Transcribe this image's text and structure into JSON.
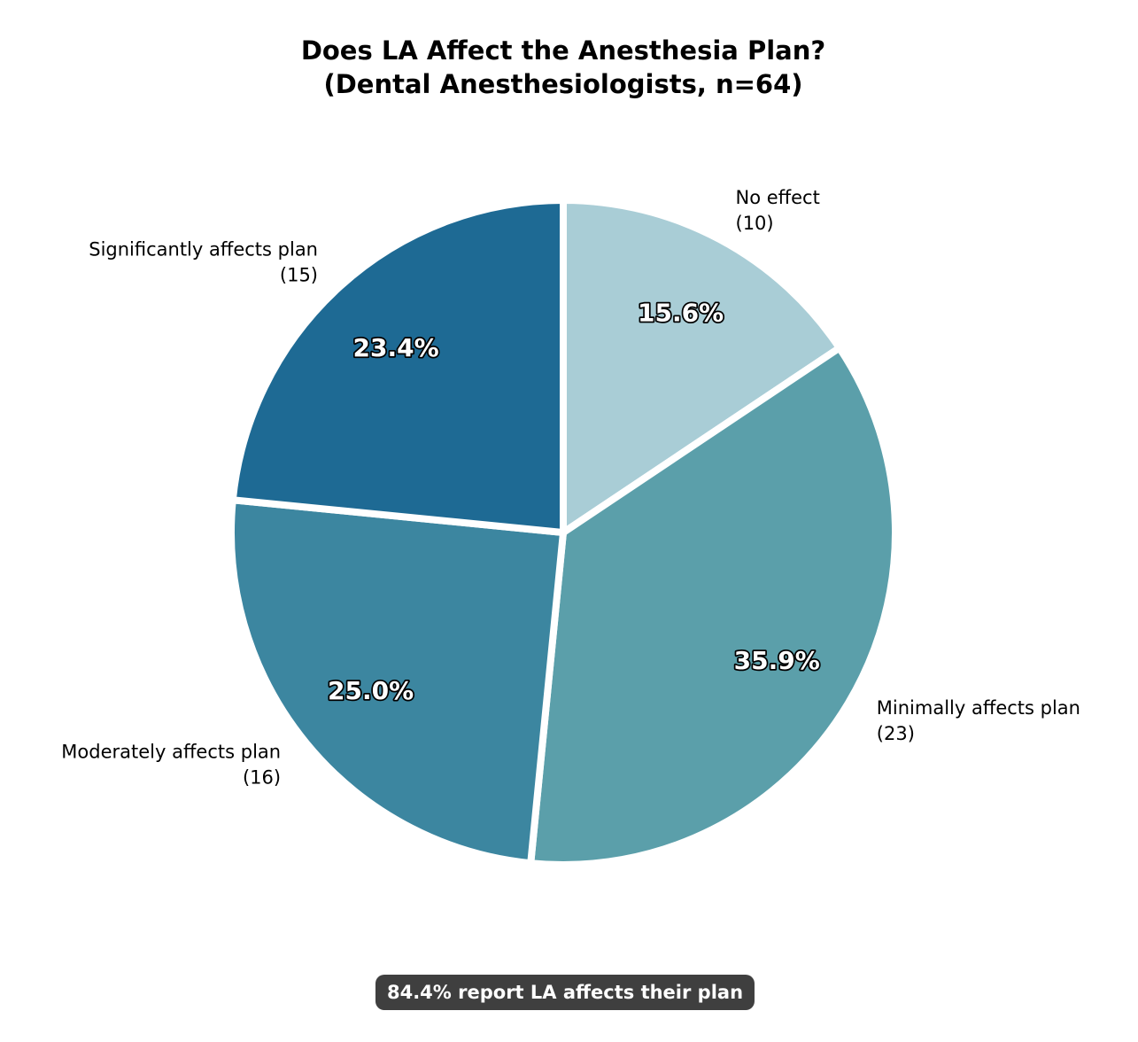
{
  "title": {
    "line1": "Does LA Affect the Anesthesia Plan?",
    "line2": "(Dental Anesthesiologists, n=64)"
  },
  "caption": {
    "text": "84.4% report LA affects their plan",
    "bg_color": "#3f3f3f",
    "text_color": "#ffffff"
  },
  "chart_data": {
    "type": "pie",
    "title": "Does LA Affect the Anesthesia Plan? (Dental Anesthesiologists, n=64)",
    "n_total": 64,
    "start_angle_deg": 90,
    "direction": "clockwise",
    "edge_color": "#ffffff",
    "slices": [
      {
        "id": "no-effect",
        "label": "No effect",
        "count_label": "(10)",
        "value": 10,
        "pct": 15.6,
        "pct_label": "15.6%",
        "color": "#a9cdd6"
      },
      {
        "id": "minimally-affects-plan",
        "label": "Minimally affects plan",
        "count_label": "(23)",
        "value": 23,
        "pct": 35.9,
        "pct_label": "35.9%",
        "color": "#5b9faa"
      },
      {
        "id": "moderately-affects-plan",
        "label": "Moderately affects plan",
        "count_label": "(16)",
        "value": 16,
        "pct": 25.0,
        "pct_label": "25.0%",
        "color": "#3c86a0"
      },
      {
        "id": "significantly-affects-plan",
        "label": "Significantly affects plan",
        "count_label": "(15)",
        "value": 15,
        "pct": 23.4,
        "pct_label": "23.4%",
        "color": "#1e6a94"
      }
    ],
    "annotation": "84.4% report LA affects their plan",
    "legend": "none"
  }
}
